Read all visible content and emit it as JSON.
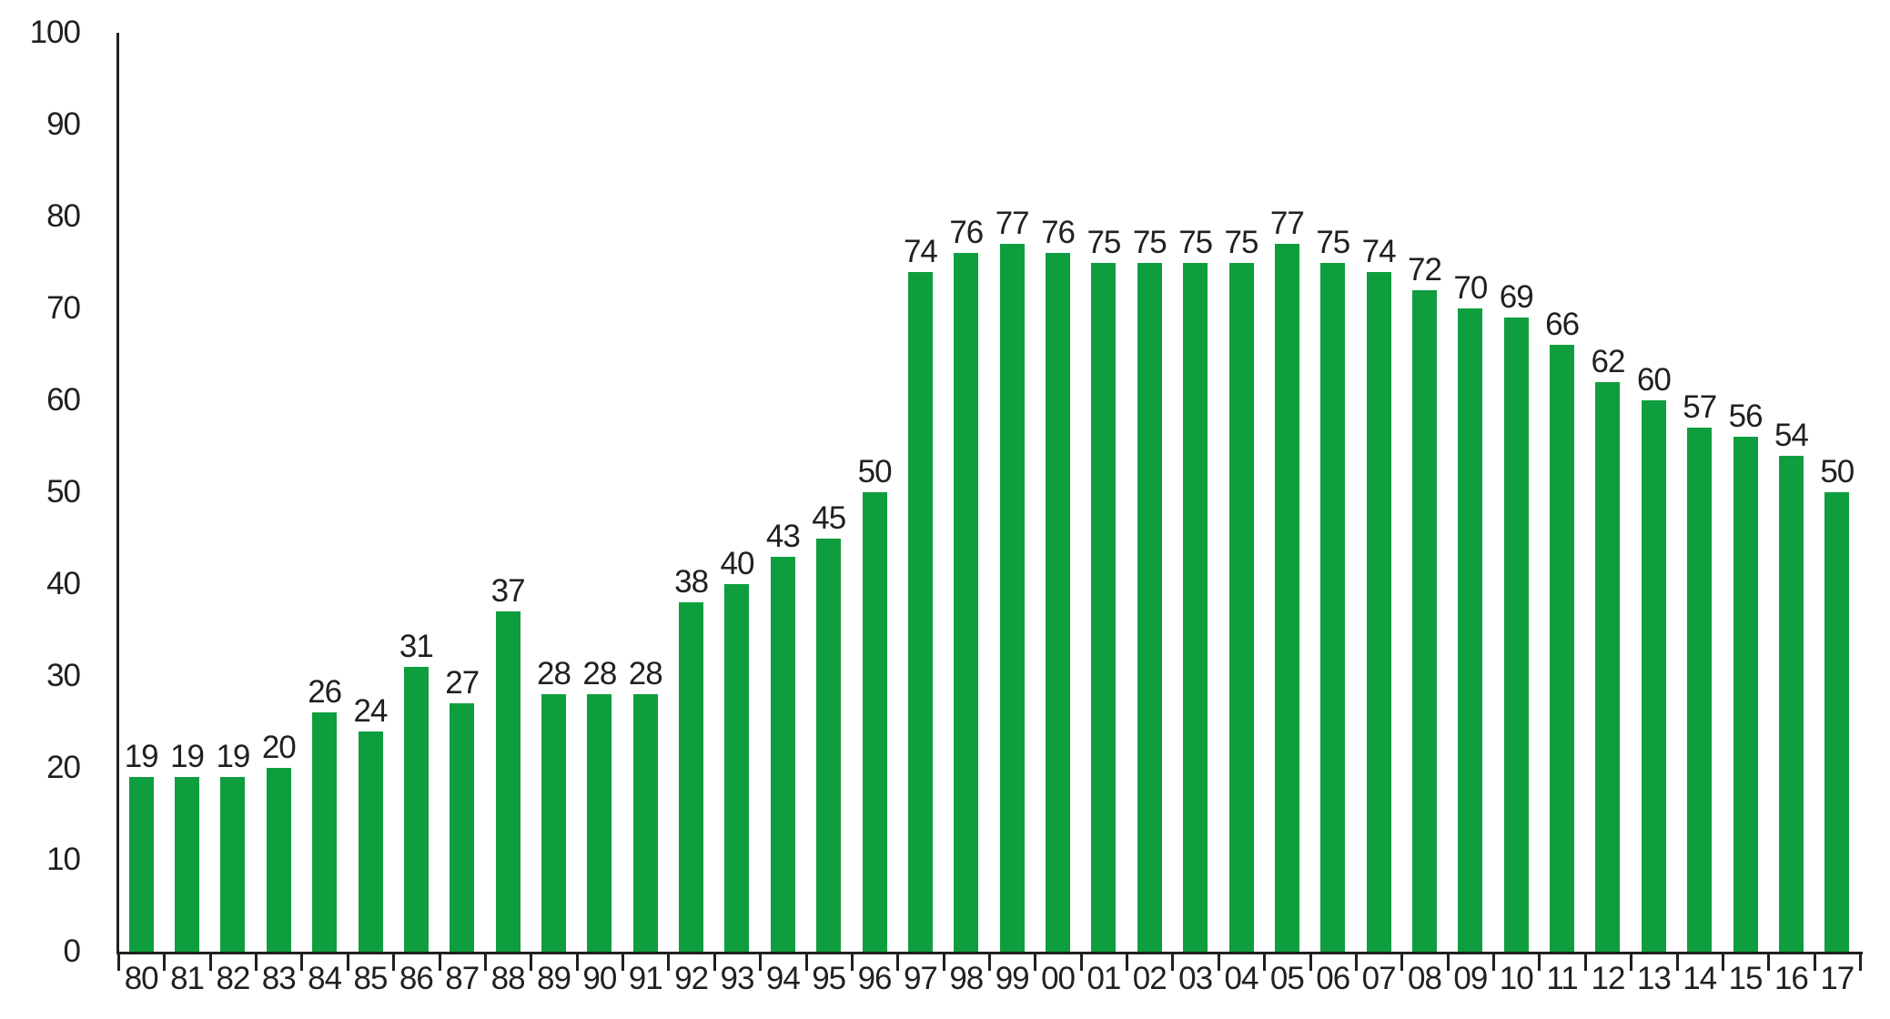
{
  "chart_data": {
    "type": "bar",
    "title": "",
    "xlabel": "",
    "ylabel": "",
    "categories": [
      "80",
      "81",
      "82",
      "83",
      "84",
      "85",
      "86",
      "87",
      "88",
      "89",
      "90",
      "91",
      "92",
      "93",
      "94",
      "95",
      "96",
      "97",
      "98",
      "99",
      "00",
      "01",
      "02",
      "03",
      "04",
      "05",
      "06",
      "07",
      "08",
      "09",
      "10",
      "11",
      "12",
      "13",
      "14",
      "15",
      "16",
      "17"
    ],
    "values": [
      19,
      19,
      19,
      20,
      26,
      24,
      31,
      27,
      37,
      28,
      28,
      28,
      38,
      40,
      43,
      45,
      50,
      74,
      76,
      77,
      76,
      75,
      75,
      75,
      75,
      77,
      75,
      74,
      72,
      70,
      69,
      66,
      62,
      60,
      57,
      56,
      54,
      50
    ],
    "y_ticks": [
      0,
      10,
      20,
      30,
      40,
      50,
      60,
      70,
      80,
      90,
      100
    ],
    "ylim": [
      0,
      100
    ],
    "grid": false,
    "legend": null,
    "data_labels_shown": true,
    "colors": {
      "bar": "#0f9e3e",
      "text": "#231f20",
      "axis": "#231f20",
      "background": "#ffffff"
    }
  }
}
